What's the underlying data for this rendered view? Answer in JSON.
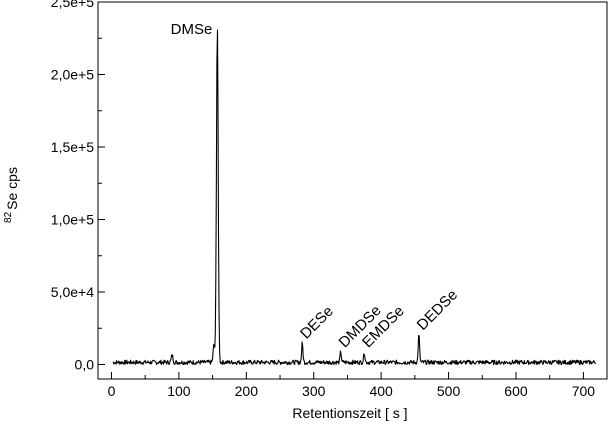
{
  "chart_data": {
    "type": "line",
    "title": "",
    "xlabel": "Retentionszeit [ s ]",
    "ylabel": {
      "superscript": "82",
      "text": "Se cps"
    },
    "xlim": [
      -20,
      735
    ],
    "ylim": [
      -10000,
      250000
    ],
    "x_ticks": [
      0,
      100,
      200,
      300,
      400,
      500,
      600,
      700
    ],
    "x_tick_labels": [
      "0",
      "100",
      "200",
      "300",
      "400",
      "500",
      "600",
      "700"
    ],
    "y_ticks": [
      0,
      50000,
      100000,
      150000,
      200000,
      250000
    ],
    "y_tick_labels": [
      "0,0",
      "5,0e+4",
      "1,0e+5",
      "1,5e+5",
      "2,0e+5",
      "2,5e+5"
    ],
    "grid": false,
    "legend": "none",
    "line_color": "#000000",
    "baseline": {
      "x_start": 2,
      "x_end": 718,
      "level": 1500,
      "noise": 1500
    },
    "peaks": [
      {
        "name": "DMSe",
        "x": 157,
        "y": 232000,
        "label_rotated": false
      },
      {
        "name": "DESe",
        "x": 283,
        "y": 13000,
        "label_rotated": true
      },
      {
        "name": "DMDSe",
        "x": 340,
        "y": 7000,
        "label_rotated": true
      },
      {
        "name": "EMDSe",
        "x": 375,
        "y": 7000,
        "label_rotated": true
      },
      {
        "name": "DEDSe",
        "x": 456,
        "y": 19000,
        "label_rotated": true
      }
    ],
    "minor_peaks": [
      {
        "x": 152,
        "y": 12000
      },
      {
        "x": 90,
        "y": 5000
      }
    ]
  }
}
